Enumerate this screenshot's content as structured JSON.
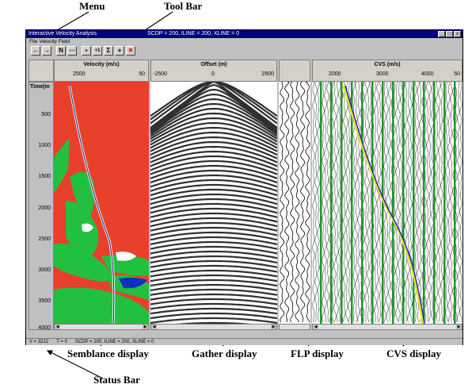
{
  "callouts": {
    "menu": "Menu",
    "toolbar": "Tool Bar",
    "semblance": "Semblance display",
    "gather": "Gather display",
    "flp": "FLP display",
    "cvs": "CVS display",
    "status": "Status Bar"
  },
  "window": {
    "title": "Interactive Velocity Analysis",
    "location": "SCDP = 200,   ILINE = 200,   XLINE = 0",
    "menu": [
      "File",
      "Velocity",
      "Field"
    ]
  },
  "toolbar": {
    "buttons": [
      {
        "icon": "left-arrow-icon",
        "glyph": "←"
      },
      {
        "icon": "right-arrow-icon",
        "glyph": "→"
      },
      {
        "icon": "n-icon",
        "glyph": "N"
      },
      {
        "icon": "dotted-box-icon",
        "glyph": "⋯"
      },
      {
        "icon": "save-icon",
        "glyph": "▪"
      },
      {
        "icon": "plus-one-icon",
        "glyph": "+1"
      },
      {
        "icon": "sigma-icon",
        "glyph": "Σ"
      },
      {
        "icon": "pick-icon",
        "glyph": "+"
      },
      {
        "icon": "delete-icon",
        "glyph": "✕"
      }
    ]
  },
  "panels": {
    "velocity": {
      "title": "Velocity (m/s)",
      "ticks": [
        "2500",
        "50"
      ]
    },
    "offset": {
      "title": "Offset (m)",
      "ticks": [
        "-2500",
        "0",
        "2500"
      ]
    },
    "cvs": {
      "title": "CVS (m/s)",
      "ticks": [
        "2000",
        "3000",
        "4000",
        "50"
      ]
    }
  },
  "time_axis": {
    "label": "Time(m",
    "ticks": [
      "500",
      "1000",
      "1500",
      "2000",
      "2500",
      "3000",
      "3500",
      "4000"
    ]
  },
  "status": {
    "v": "V = 3212",
    "t": "T =     0",
    "location": "SCDP = 200,   ILINE = 200,   XLINE = 0"
  },
  "colors": {
    "semblance_bg": "#e8402a",
    "semblance_green": "#22c040",
    "semblance_blue": "#1030c0",
    "cvs_green": "#1a9a2a",
    "pick_yellow": "#f0e020",
    "pick_blue": "#1020c0",
    "title_bar": "#000080"
  }
}
